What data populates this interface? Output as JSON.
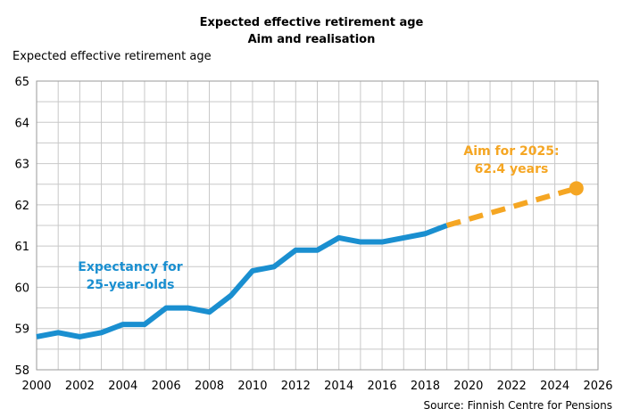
{
  "chart_data": {
    "type": "line",
    "title": "Expected effective retirement age",
    "subtitle": "Aim and realisation",
    "ylabel": "Expected effective retirement age",
    "xlabel": "",
    "source": "Source: Finnish Centre for Pensions",
    "xlim": [
      2000,
      2026
    ],
    "ylim": [
      58,
      65
    ],
    "x_ticks": [
      2000,
      2002,
      2004,
      2006,
      2008,
      2010,
      2012,
      2014,
      2016,
      2018,
      2020,
      2022,
      2024,
      2026
    ],
    "y_ticks": [
      58,
      59,
      60,
      61,
      62,
      63,
      64,
      65
    ],
    "grid": true,
    "series": [
      {
        "name": "",
        "style": "solid",
        "color": "#1a8fd0",
        "x": [
          2000,
          2001,
          2002,
          2003,
          2004,
          2005,
          2006,
          2007,
          2008,
          2009,
          2010,
          2011,
          2012,
          2013,
          2014,
          2015,
          2016,
          2017,
          2018,
          2019
        ],
        "values": [
          58.8,
          58.9,
          58.8,
          58.9,
          59.1,
          59.1,
          59.5,
          59.5,
          59.4,
          59.8,
          60.4,
          60.5,
          60.9,
          60.9,
          61.2,
          61.1,
          61.1,
          61.2,
          61.3,
          61.5
        ]
      },
      {
        "name": "",
        "style": "dashed",
        "color": "#f5a623",
        "x": [
          2019,
          2025
        ],
        "values": [
          61.5,
          62.4
        ]
      }
    ],
    "annotations": {
      "blue_line1": "Expectancy for",
      "blue_line2": "25-year-olds",
      "orange_line1": "Aim for 2025:",
      "orange_line2": "62.4 years"
    },
    "target_point": {
      "x": 2025,
      "y": 62.4
    }
  }
}
